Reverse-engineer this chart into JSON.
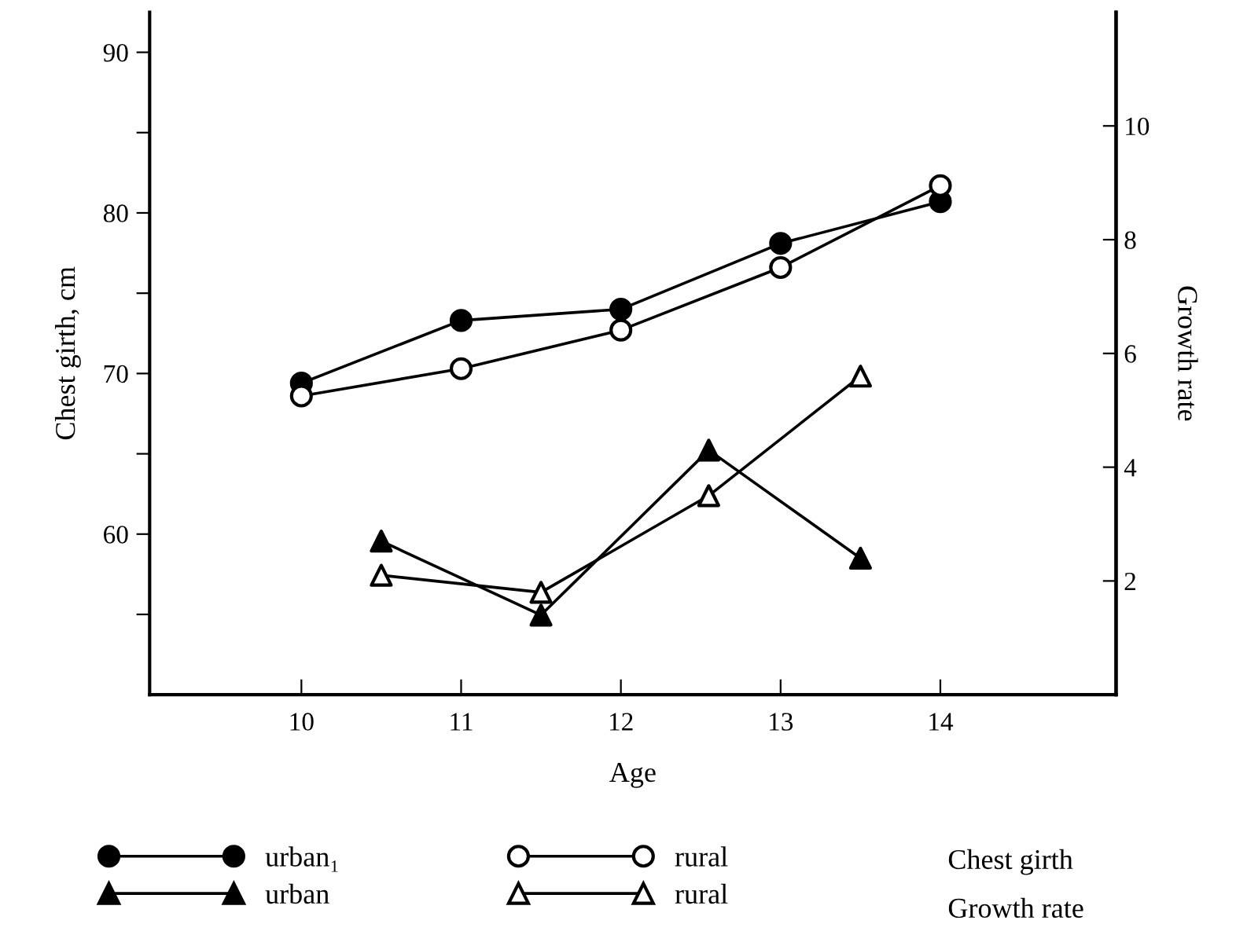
{
  "chart_data": {
    "type": "line",
    "xlabel": "Age",
    "ylabel": "Chest girth, cm",
    "y2label": "Growth rate",
    "xlim": [
      9.05,
      15.1
    ],
    "xticks": [
      10,
      11,
      12,
      13,
      14
    ],
    "ylim": [
      50,
      92.5
    ],
    "yticks": [
      {
        "value": 55,
        "label": null
      },
      60,
      {
        "value": 65,
        "label": null
      },
      70,
      {
        "value": 75,
        "label": null
      },
      80,
      {
        "value": 85,
        "label": null
      },
      90
    ],
    "y2lim": [
      0,
      12
    ],
    "y2ticks": [
      2,
      4,
      6,
      8,
      10
    ],
    "grid": false,
    "legend": "bottom",
    "series": [
      {
        "name": "urban₁",
        "color": "#000000",
        "colors": [
          "#000000",
          "#000000",
          "#000000",
          "#000000",
          "#000000"
        ],
        "marker": "circle",
        "x": [
          10,
          11,
          12,
          13,
          14
        ],
        "values": [
          69.4,
          73.3,
          74.0,
          78.1,
          80.7
        ]
      },
      {
        "name": "rural",
        "color": "#000000",
        "colors": [
          "#ffffff",
          "#ffffff",
          "#ffffff",
          "#ffffff",
          "#ffffff"
        ],
        "marker": "circle",
        "x": [
          10,
          11,
          12,
          13,
          14
        ],
        "values": [
          68.6,
          70.3,
          72.7,
          76.6,
          81.7
        ]
      },
      {
        "name": "urban",
        "color": "#000000",
        "colors": [
          "#000000",
          "#000000",
          "#000000",
          "#000000"
        ],
        "marker": "triangle",
        "axis": "y2",
        "x": [
          10.5,
          11.5,
          12.55,
          13.5
        ],
        "values": [
          2.7,
          1.4,
          4.3,
          2.4
        ]
      },
      {
        "name": "rural",
        "color": "#000000",
        "colors": [
          "#ffffff",
          "#ffffff",
          "#ffffff",
          "#ffffff"
        ],
        "marker": "triangle",
        "axis": "y2",
        "x": [
          10.5,
          11.5,
          12.55,
          13.5
        ],
        "values": [
          2.1,
          1.8,
          3.5,
          5.6
        ]
      }
    ],
    "annotations": [
      "Chest girth",
      "Growth rate"
    ]
  }
}
